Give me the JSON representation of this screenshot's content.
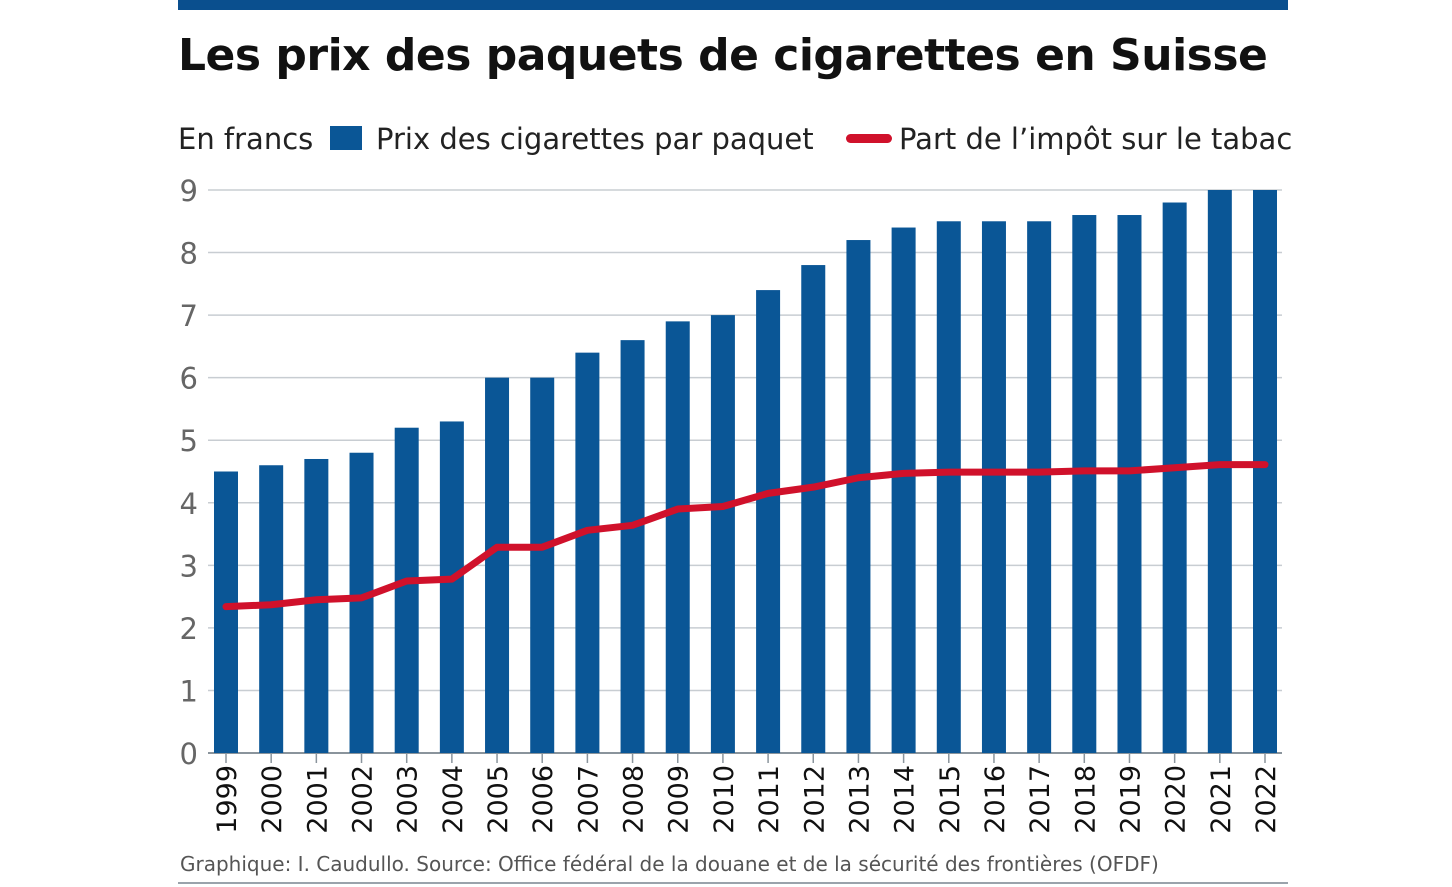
{
  "title": "Les prix des paquets de cigarettes en Suisse",
  "unit_label": "En francs",
  "legend": {
    "bars": "Prix des cigarettes par paquet",
    "line": "Part de l’impôt sur le tabac"
  },
  "source": "Graphique: I. Caudullo. Source: Office fédéral de la douane et de la sécurité des frontières (OFDF)",
  "colors": {
    "bar": "#0a5696",
    "line": "#d0112b",
    "topbar": "#0a4f8e",
    "grid": "#c8cdd2",
    "axis_text": "#666666"
  },
  "chart_data": {
    "type": "bar",
    "title": "Les prix des paquets de cigarettes en Suisse",
    "ylabel": "En francs",
    "xlabel": "",
    "ylim": [
      0,
      9
    ],
    "yticks": [
      0,
      1,
      2,
      3,
      4,
      5,
      6,
      7,
      8,
      9
    ],
    "grid": true,
    "legend_position": "top",
    "categories": [
      "1999",
      "2000",
      "2001",
      "2002",
      "2003",
      "2004",
      "2005",
      "2006",
      "2007",
      "2008",
      "2009",
      "2010",
      "2011",
      "2012",
      "2013",
      "2014",
      "2015",
      "2016",
      "2017",
      "2018",
      "2019",
      "2020",
      "2021",
      "2022"
    ],
    "series": [
      {
        "name": "Prix des cigarettes par paquet",
        "type": "bar",
        "values": [
          4.5,
          4.6,
          4.7,
          4.8,
          5.2,
          5.3,
          6.0,
          6.0,
          6.4,
          6.6,
          6.9,
          7.0,
          7.4,
          7.8,
          8.2,
          8.4,
          8.5,
          8.5,
          8.5,
          8.6,
          8.6,
          8.8,
          9.0,
          9.0
        ]
      },
      {
        "name": "Part de l’impôt sur le tabac",
        "type": "line",
        "values": [
          2.34,
          2.37,
          2.45,
          2.48,
          2.75,
          2.78,
          3.29,
          3.29,
          3.56,
          3.64,
          3.9,
          3.94,
          4.15,
          4.25,
          4.4,
          4.47,
          4.49,
          4.49,
          4.49,
          4.51,
          4.51,
          4.56,
          4.61,
          4.61
        ]
      }
    ]
  }
}
